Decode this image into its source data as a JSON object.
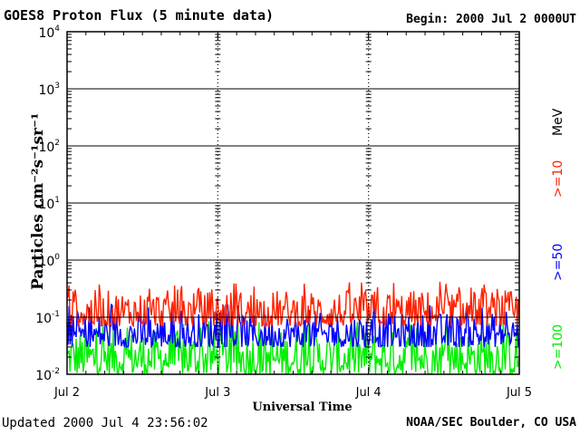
{
  "header": {
    "title": "GOES8 Proton Flux (5 minute data)",
    "begin_label": "Begin:",
    "begin_value": "2000 Jul 2 0000UT"
  },
  "footer": {
    "updated_label": "Updated",
    "updated_value": "2000 Jul  4 23:56:02",
    "credit": "NOAA/SEC Boulder, CO USA"
  },
  "chart_data": {
    "type": "line",
    "xlabel": "Universal Time",
    "ylabel": "Particles cm⁻²s⁻¹sr⁻¹",
    "y_scale": "log",
    "ylim": [
      0.01,
      10000
    ],
    "y_ticks": [
      {
        "base": "10",
        "exp": "-2"
      },
      {
        "base": "10",
        "exp": "-1"
      },
      {
        "base": "10",
        "exp": "0"
      },
      {
        "base": "10",
        "exp": "1"
      },
      {
        "base": "10",
        "exp": "2"
      },
      {
        "base": "10",
        "exp": "3"
      },
      {
        "base": "10",
        "exp": "4"
      }
    ],
    "x_ticks": [
      "Jul 2",
      "Jul 3",
      "Jul 4",
      "Jul 5"
    ],
    "xlim": [
      "2000-07-02 00:00",
      "2000-07-05 00:00"
    ],
    "grid": true,
    "legend_position": "right",
    "unit_label": "MeV",
    "series": [
      {
        "name": ">=10",
        "color": "#ff2200",
        "typical_low": 0.07,
        "typical_high": 0.3
      },
      {
        "name": ">=50",
        "color": "#0000ff",
        "typical_low": 0.03,
        "typical_high": 0.12
      },
      {
        "name": ">=100",
        "color": "#00ee00",
        "typical_low": 0.01,
        "typical_high": 0.06
      }
    ]
  }
}
